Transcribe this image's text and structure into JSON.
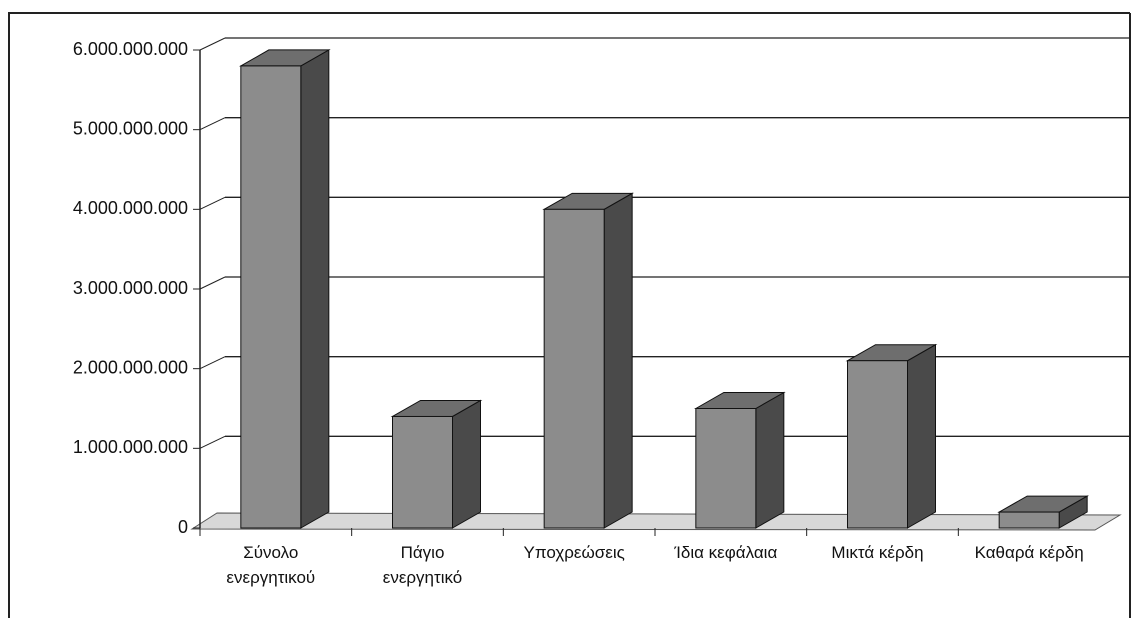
{
  "chart_data": {
    "type": "bar3d",
    "categories": [
      "Σύνολο\nενεργητικού",
      "Πάγιο\nενεργητικό",
      "Υποχρεώσεις",
      "Ίδια κεφάλαια",
      "Μικτά κέρδη",
      "Καθαρά κέρδη"
    ],
    "values": [
      5800000000,
      1400000000,
      4000000000,
      1500000000,
      2100000000,
      200000000
    ],
    "color": "#8c8c8c",
    "ylim": [
      0,
      6000000000
    ],
    "yticks": [
      0,
      {
        "value": 1000000000,
        "label": "1.000.000.000"
      },
      {
        "value": 2000000000,
        "label": "2.000.000.000"
      },
      {
        "value": 3000000000,
        "label": "3.000.000.000"
      },
      {
        "value": 4000000000,
        "label": "4.000.000.000"
      },
      {
        "value": 5000000000,
        "label": "5.000.000.000"
      },
      {
        "value": 6000000000,
        "label": "6.000.000.000"
      }
    ],
    "grid": true
  }
}
